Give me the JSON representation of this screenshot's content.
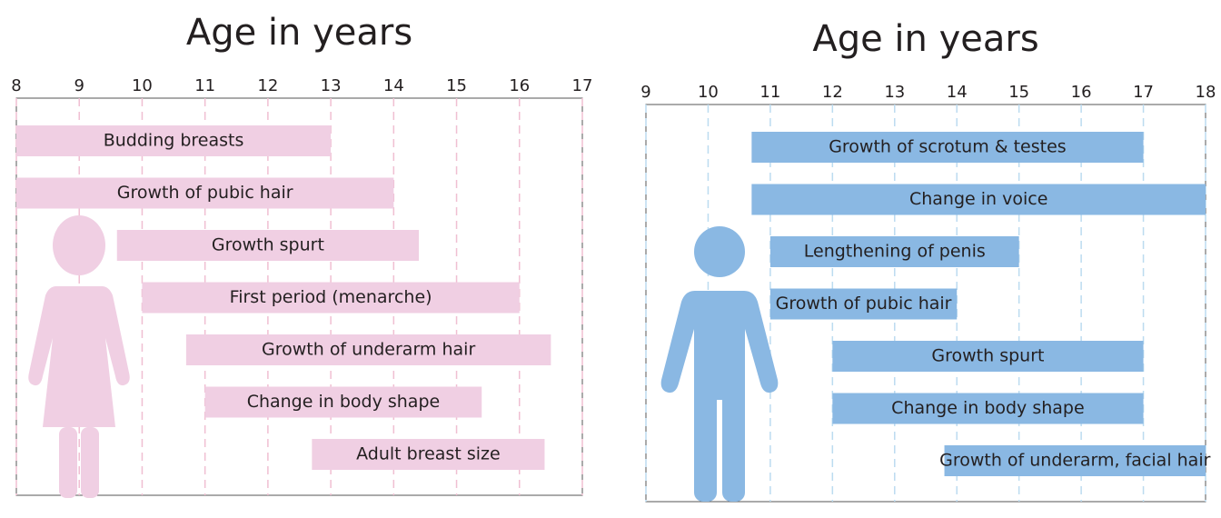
{
  "chart_data": [
    {
      "type": "range-bar",
      "title": "Age in years",
      "color": "#f0cfe3",
      "grid_color": "#f0bfd2",
      "categories": [
        "Budding breasts",
        "Growth of pubic hair",
        "Growth spurt",
        "First period (menarche)",
        "Growth of underarm hair",
        "Change in body shape",
        "Adult breast size"
      ],
      "start": [
        8,
        8,
        9.6,
        10,
        10.7,
        11,
        12.7
      ],
      "end": [
        13,
        14,
        14.4,
        16,
        16.5,
        15.4,
        16.4
      ],
      "xlim": [
        8,
        17
      ],
      "xticks": [
        8,
        9,
        10,
        11,
        12,
        13,
        14,
        15,
        16,
        17
      ],
      "grid": true
    },
    {
      "type": "range-bar",
      "title": "Age in years",
      "color": "#8ab8e3",
      "grid_color": "#bcdcf0",
      "categories": [
        "Growth of scrotum & testes",
        "Change in voice",
        "Lengthening of penis",
        "Growth  of pubic hair",
        "Growth spurt",
        "Change in body shape",
        "Growth of underarm, facial hair"
      ],
      "start": [
        10.7,
        10.7,
        11,
        11,
        12,
        12,
        13.8
      ],
      "end": [
        17,
        18,
        15,
        14,
        17,
        17,
        18
      ],
      "xlim": [
        9,
        18
      ],
      "xticks": [
        9,
        10,
        11,
        12,
        13,
        14,
        15,
        16,
        17,
        18
      ],
      "grid": true
    }
  ]
}
